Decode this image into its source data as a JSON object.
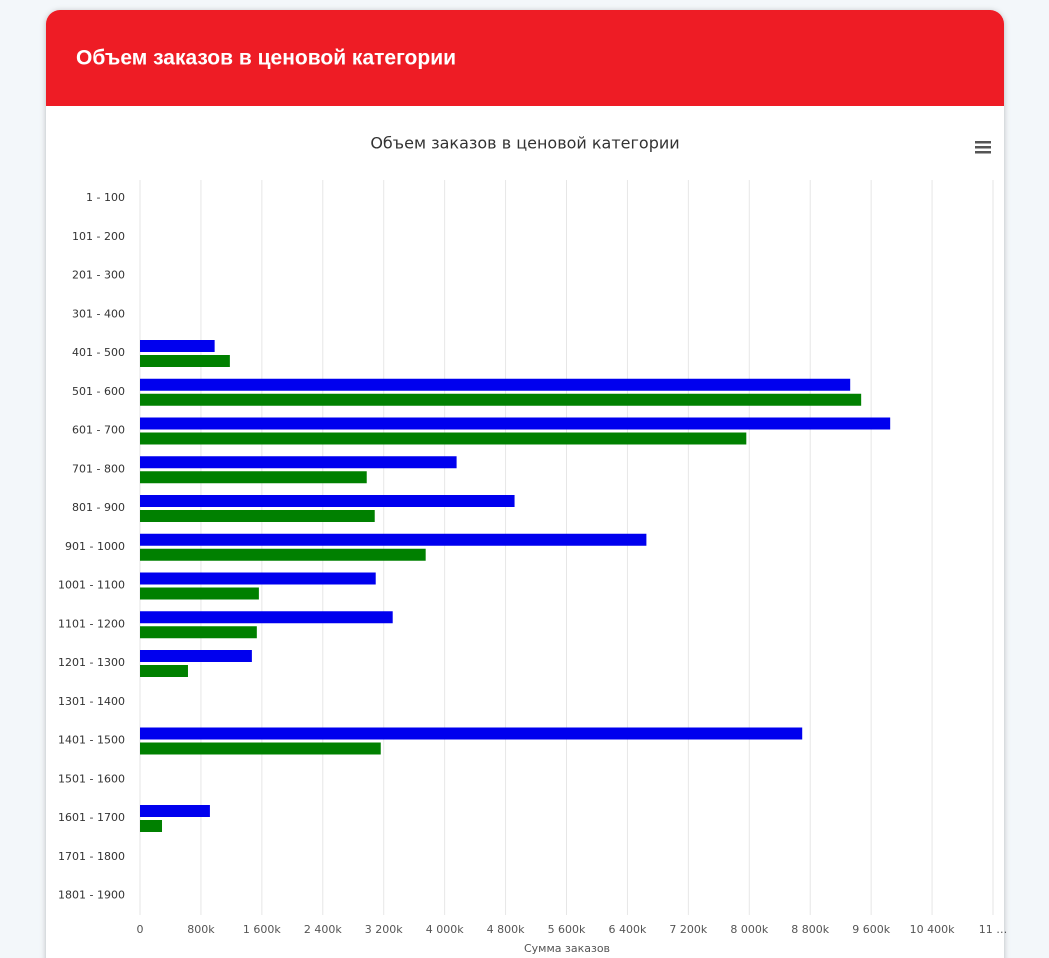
{
  "header": {
    "title": "Объем заказов в ценовой категории"
  },
  "chart_data": {
    "type": "bar",
    "orientation": "horizontal",
    "title": "Объем заказов в ценовой категории",
    "x_label": "Сумма заказов",
    "categories": [
      "1 - 100",
      "101 - 200",
      "201 - 300",
      "301 - 400",
      "401 - 500",
      "501 - 600",
      "601 - 700",
      "701 - 800",
      "801 - 900",
      "901 - 1000",
      "1001 - 1100",
      "1101 - 1200",
      "1201 - 1300",
      "1301 - 1400",
      "1401 - 1500",
      "1501 - 1600",
      "1601 - 1700",
      "1701 - 1800",
      "1801 - 1900"
    ],
    "series": [
      {
        "color": "#0000ee",
        "values": [
          null,
          null,
          null,
          null,
          980000,
          9325000,
          9850000,
          4157000,
          4918000,
          6649000,
          3095000,
          3318000,
          1469000,
          null,
          8695000,
          null,
          918000,
          null,
          null
        ]
      },
      {
        "color": "#008000",
        "values": [
          null,
          null,
          null,
          null,
          1180000,
          9469000,
          7961000,
          2977000,
          3082000,
          3751000,
          1561000,
          1534000,
          630000,
          null,
          3161000,
          null,
          289000,
          null,
          null
        ]
      }
    ],
    "xlim": [
      0,
      11200000
    ],
    "xticks": [
      0,
      {
        "value": 800000,
        "label": "800k"
      },
      {
        "value": 1600000,
        "label": "1 600k"
      },
      {
        "value": 2400000,
        "label": "2 400k"
      },
      {
        "value": 3200000,
        "label": "3 200k"
      },
      {
        "value": 4000000,
        "label": "4 000k"
      },
      {
        "value": 4800000,
        "label": "4 800k"
      },
      {
        "value": 5600000,
        "label": "5 600k"
      },
      {
        "value": 6400000,
        "label": "6 400k"
      },
      {
        "value": 7200000,
        "label": "7 200k"
      },
      {
        "value": 8000000,
        "label": "8 000k"
      },
      {
        "value": 8800000,
        "label": "8 800k"
      },
      {
        "value": 9600000,
        "label": "9 600k"
      },
      {
        "value": 10400000,
        "label": "10 400k"
      },
      {
        "value": 11200000,
        "label": "11 …"
      }
    ],
    "grid": true
  }
}
